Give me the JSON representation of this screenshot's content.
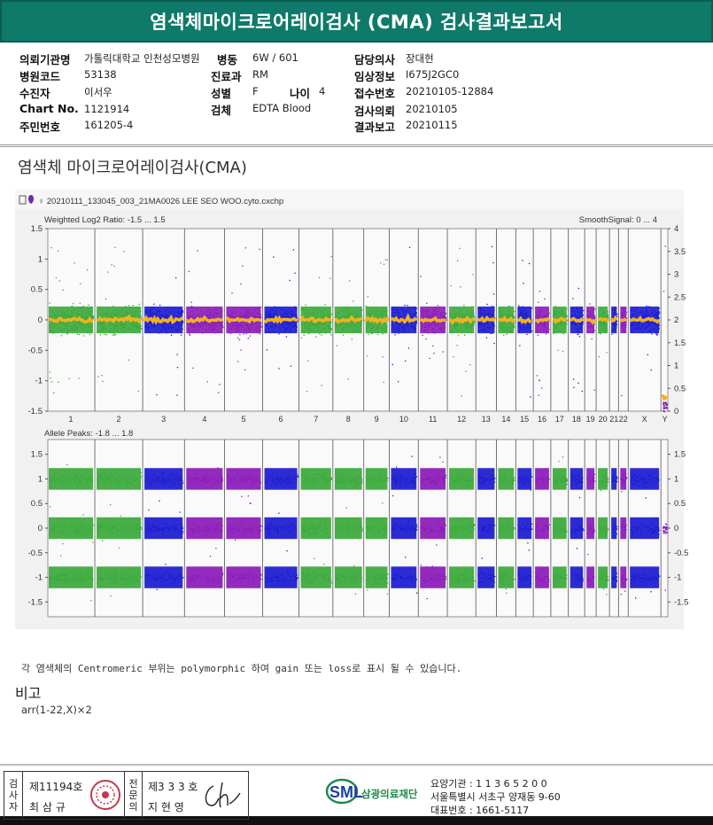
{
  "header": {
    "title": "염색체마이크로어레이검사 (CMA) 검사결과보고서"
  },
  "info": {
    "fields": [
      {
        "label": "의뢰기관명",
        "value": "가톨릭대학교 인천성모병원"
      },
      {
        "label": "병원코드",
        "value": "53138"
      },
      {
        "label": "수진자",
        "value": "이서우"
      },
      {
        "label": "Chart No.",
        "value": "1121914"
      },
      {
        "label": "주민번호",
        "value": "161205-4"
      },
      {
        "label": "병동",
        "value": "6W / 601"
      },
      {
        "label": "진료과",
        "value": "RM"
      },
      {
        "label": "성별",
        "value": "F"
      },
      {
        "label": "나이",
        "value": "4"
      },
      {
        "label": "검체",
        "value": "EDTA Blood"
      },
      {
        "label": "담당의사",
        "value": "장대현"
      },
      {
        "label": "임상정보",
        "value": "I675J2GC0"
      },
      {
        "label": "접수번호",
        "value": "20210105-12884"
      },
      {
        "label": "검사의뢰",
        "value": "20210105"
      },
      {
        "label": "결과보고",
        "value": "20210115"
      }
    ]
  },
  "section_title": "염색체 마이크로어레이검사(CMA)",
  "chart_data": {
    "type": "scatter",
    "file_name": "♀ 20210111_133045_003_21MA0026 LEE SEO WOO.cyto.cxchp",
    "chromosomes": [
      "1",
      "2",
      "3",
      "4",
      "5",
      "6",
      "7",
      "8",
      "9",
      "10",
      "11",
      "12",
      "13",
      "14",
      "15",
      "16",
      "17",
      "18",
      "19",
      "20",
      "21",
      "22",
      "X",
      "Y"
    ],
    "series_colors": [
      "#3aa83a",
      "#1a1ad0",
      "#8a1ab8"
    ],
    "smooth_color": "#f2b21e",
    "top_panel": {
      "title": "Weighted Log2 Ratio: -1.5 ... 1.5",
      "right_title": "SmoothSignal: 0 ... 4",
      "ylim": [
        -1.5,
        1.5
      ],
      "left_ticks": [
        "1.5",
        "1",
        "0.5",
        "0",
        "-0.5",
        "-1",
        "-1.5"
      ],
      "right_ticks": [
        "4",
        "3.5",
        "3",
        "2.5",
        "2",
        "1.5",
        "1",
        "0.5",
        "0"
      ],
      "baseline_log2": 0,
      "smooth_signal_baseline": 2,
      "y_chrom_log2": -1.4
    },
    "bottom_panel": {
      "title": "Allele Peaks: -1.8 ... 1.8",
      "ylim": [
        -1.8,
        1.8
      ],
      "left_ticks": [
        "1.5",
        "1",
        "0.5",
        "0",
        "-0.5",
        "-1",
        "-1.5"
      ],
      "right_ticks": [
        "1.5",
        "1",
        "0.5",
        "0",
        "-0.5",
        "-1",
        "-1.5"
      ],
      "allele_peaks": [
        1,
        0,
        -1
      ]
    }
  },
  "note": "각 염색체의 Centromeric 부위는 polymorphic 하여 gain 또는 loss로 표시 될 수 있습니다.",
  "remarks": {
    "title": "비고",
    "text": "arr(1-22,X)×2"
  },
  "footer": {
    "inspector_label": [
      "검",
      "사",
      "자"
    ],
    "inspector_no": "제11194호",
    "inspector_name": "최 삼 규",
    "specialist_label": [
      "전",
      "문",
      "의"
    ],
    "specialist_no": "제3 3 3 호",
    "specialist_name": "지 현 영",
    "logo_text": "SML",
    "org_name": "삼광의료재단",
    "care_code": "요양기관 : 1 1 3 6 5 2 0 0",
    "address": "서울특별시 서초구 양재동 9-60",
    "phone": "대표번호 : 1661-5117"
  }
}
